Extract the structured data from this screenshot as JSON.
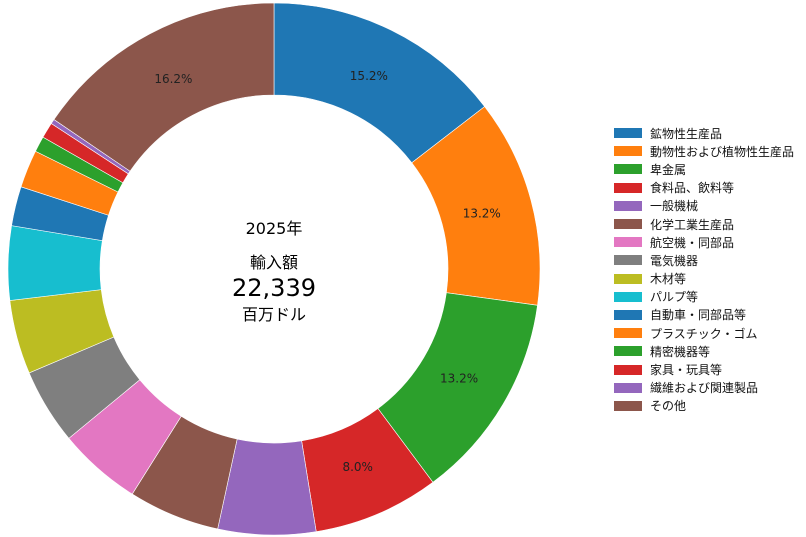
{
  "chart_data": {
    "type": "pie",
    "style": "donut",
    "center_text": {
      "year": "2025年",
      "label": "輸入額",
      "total": "22,339",
      "unit": "百万ドル"
    },
    "slices": [
      {
        "name": "鉱物性生産品",
        "value": 15.2,
        "label": "15.2%",
        "color": "#1f77b4"
      },
      {
        "name": "動物性および植物性生産品",
        "value": 13.2,
        "label": "13.2%",
        "color": "#ff7f0e"
      },
      {
        "name": "卑金属",
        "value": 13.2,
        "label": "13.2%",
        "color": "#2ca02c"
      },
      {
        "name": "食料品、飲料等",
        "value": 8.0,
        "label": "8.0%",
        "color": "#d62728"
      },
      {
        "name": "一般機械",
        "value": 6.2,
        "label": "",
        "color": "#9467bd"
      },
      {
        "name": "化学工業生産品",
        "value": 5.8,
        "label": "",
        "color": "#8c564b"
      },
      {
        "name": "航空機・同部品",
        "value": 5.3,
        "label": "",
        "color": "#e377c2"
      },
      {
        "name": "電気機器",
        "value": 4.8,
        "label": "",
        "color": "#7f7f7f"
      },
      {
        "name": "木材等",
        "value": 4.7,
        "label": "",
        "color": "#bcbd22"
      },
      {
        "name": "パルプ等",
        "value": 4.7,
        "label": "",
        "color": "#17becf"
      },
      {
        "name": "自動車・同部品等",
        "value": 2.5,
        "label": "",
        "color": "#1f77b4"
      },
      {
        "name": "プラスチック・ゴム",
        "value": 2.4,
        "label": "",
        "color": "#ff7f0e"
      },
      {
        "name": "精密機器等",
        "value": 1.0,
        "label": "",
        "color": "#2ca02c"
      },
      {
        "name": "家具・玩具等",
        "value": 1.0,
        "label": "",
        "color": "#d62728"
      },
      {
        "name": "繊維および関連製品",
        "value": 0.3,
        "label": "",
        "color": "#9467bd"
      },
      {
        "name": "その他",
        "value": 16.2,
        "label": "16.2%",
        "color": "#8c564b"
      }
    ],
    "legend_position": "right"
  }
}
